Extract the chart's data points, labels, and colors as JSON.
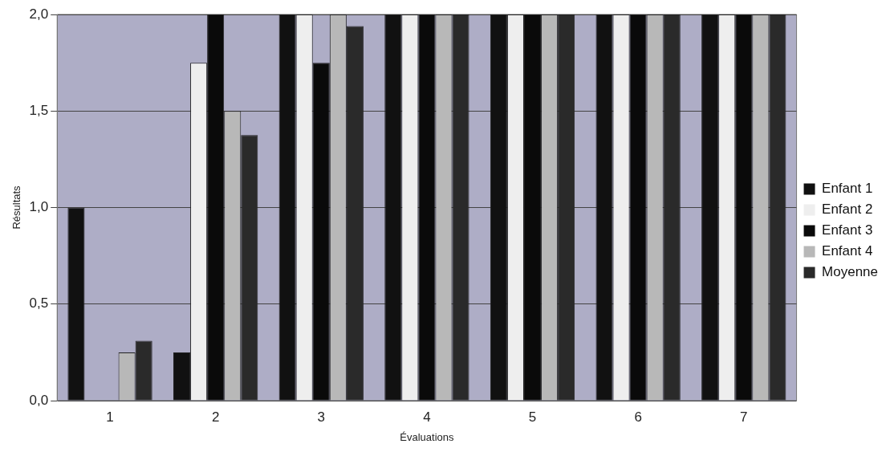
{
  "chart_data": {
    "type": "bar",
    "xlabel": "Évaluations",
    "ylabel": "Résultats",
    "categories": [
      "1",
      "2",
      "3",
      "4",
      "5",
      "6",
      "7"
    ],
    "series": [
      {
        "name": "Enfant 1",
        "color": "#111111",
        "values": [
          1,
          0.25,
          2,
          2,
          2,
          2,
          2
        ]
      },
      {
        "name": "Enfant 2",
        "color": "#eeeeee",
        "values": [
          0,
          1.75,
          2,
          2,
          2,
          2,
          2
        ]
      },
      {
        "name": "Enfant 3",
        "color": "#0a0a0a",
        "values": [
          0,
          2,
          1.75,
          2,
          2,
          2,
          2
        ]
      },
      {
        "name": "Enfant 4",
        "color": "#b8b8b8",
        "values": [
          0.25,
          1.5,
          2,
          2,
          2,
          2,
          2
        ]
      },
      {
        "name": "Moyenne",
        "color": "#2a2a2a",
        "values": [
          0.31,
          1.375,
          1.94,
          2,
          2,
          2,
          2
        ]
      }
    ],
    "ylim": [
      0,
      2
    ],
    "yticks": [
      {
        "value": 0,
        "label": "0,0"
      },
      {
        "value": 0.5,
        "label": "0,5"
      },
      {
        "value": 1,
        "label": "1,0"
      },
      {
        "value": 1.5,
        "label": "1,5"
      },
      {
        "value": 2,
        "label": "2,0"
      }
    ],
    "grid": "y",
    "legend": "right"
  }
}
